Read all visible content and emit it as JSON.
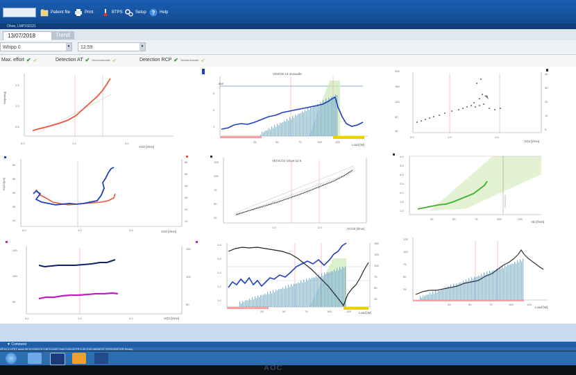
{
  "toolbar": {
    "patient_file": "Patient file",
    "print": "Print",
    "btps": "BTPS",
    "setup": "Setup",
    "help": "Help"
  },
  "subbar": {
    "text": "Ohne, LMP160121"
  },
  "tabs": {
    "date": "13/07/2018",
    "trend": "Trend"
  },
  "selectors": {
    "protocol": "Whipp 0",
    "time": "12:59"
  },
  "detections": {
    "max_effort": "Max. effort",
    "at": "Detection AT",
    "rcp": "Detection RCP",
    "semi_auto_1": "Semiautomatic",
    "semi_auto_2": "Semiautomatic"
  },
  "icons": {
    "patient_file": "folder-icon",
    "print": "printer-icon",
    "btps": "thermometer-icon",
    "setup": "gears-icon",
    "help": "help-icon"
  },
  "colors": {
    "toolbar": "#1a5fb4",
    "red": "#e8573b",
    "blue": "#1f3fbf",
    "green": "#3fae2a",
    "magenta": "#c020c0",
    "navy": "#0c1f6a",
    "black": "#222222",
    "bar": "#5a9ad6"
  },
  "charts": {
    "c1": {
      "ylabel": "Sm[ml/kg]",
      "xlabel": "VO2 [l/min]",
      "xticks": [
        "0.0",
        "1.0",
        "2.0"
      ],
      "yticks": [
        "1.5",
        "1.0",
        "0.5"
      ]
    },
    "c2": {
      "title": "VO2/VE 14 niveau/kr",
      "xlabel": "Load [W]",
      "yticks": [
        "3",
        "2",
        "1"
      ],
      "xticks": [
        "25",
        "50",
        "75",
        "100",
        "125"
      ],
      "top_label": "MW"
    },
    "c3": {
      "yticks": [
        "200",
        "160",
        "120",
        "80",
        "40"
      ],
      "right_ticks": [
        "40",
        "30",
        "20",
        "10",
        "0"
      ],
      "xlabel": "VO2 [l/min]",
      "xticks": [
        "0.0",
        "1.0",
        "2.0"
      ]
    },
    "c4": {
      "ylabel": "EQO2[ml]",
      "yticks": [
        "60",
        "50",
        "40",
        "30",
        "20"
      ],
      "right_ticks": [
        "60",
        "50",
        "40",
        "30",
        "20",
        "10"
      ],
      "xlabel": "VO2 [l/min]",
      "xticks": [
        "0.0",
        "1.0",
        "2.0"
      ]
    },
    "c5": {
      "title": "VE/VCO2 Slope 22.6",
      "yticks": [
        "125",
        "100",
        "75",
        "50",
        "25"
      ],
      "xlabel": "VCO2 [l/min]",
      "xticks": [
        "1.0",
        "2.0"
      ]
    },
    "c6": {
      "yticks": [
        "4.0",
        "3.5",
        "3.0",
        "2.5",
        "2.0",
        "1.5",
        "1.0"
      ],
      "xlabel": "VE [l/min]",
      "xticks": [
        "25",
        "50",
        "75",
        "100",
        "125"
      ]
    },
    "c7": {
      "yticks": [
        "150",
        "100",
        "50"
      ],
      "right_ticks": [
        "150",
        "100",
        "50"
      ],
      "xlabel": "VO2 [l/min]",
      "xticks": [
        "0.0",
        "1.0",
        "2.0"
      ]
    },
    "c8": {
      "yticks": [
        "1.8",
        "1.6",
        "1.4",
        "1.2",
        "1.0"
      ],
      "right_ticks": [
        "150",
        "125",
        "100",
        "75",
        "50",
        "25"
      ],
      "xlabel": "Load [W]",
      "xticks": [
        "25",
        "50",
        "75",
        "100",
        "125"
      ]
    },
    "c9": {
      "yticks": [
        "125",
        "100",
        "75",
        "50",
        "25"
      ],
      "xlabel": "Load [W]",
      "xticks": [
        "25",
        "50",
        "75",
        "100",
        "125"
      ]
    }
  },
  "status": {
    "comment": "Comment",
    "line": "ZETA 2 CPET aone  45 %  KNC076 4 BFC/CMS  Time 0:00:00  PR  0.00  0.00  AMBIENT  SPIROMETER  Ready"
  },
  "brand": "AOC"
}
